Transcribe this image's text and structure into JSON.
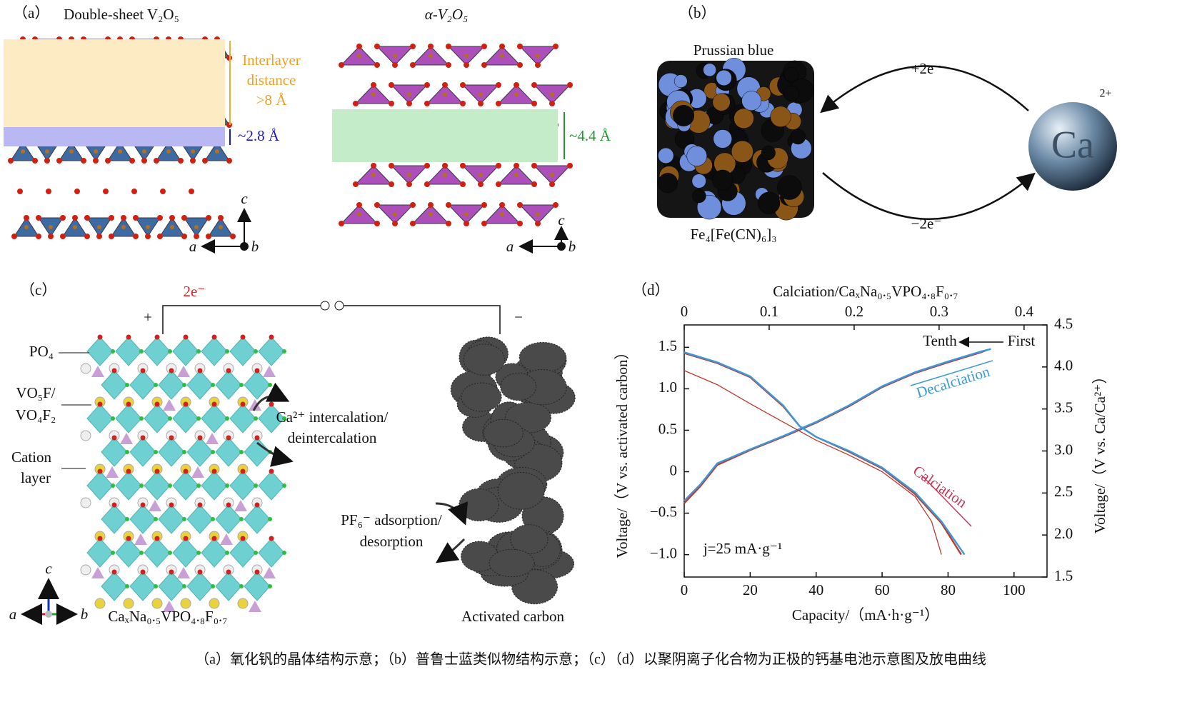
{
  "panel_a": {
    "label": "（a）",
    "left_title": "Double-sheet V₂O₅",
    "right_title": "α-V₂O₅",
    "interlayer": [
      "Interlayer",
      "distance",
      ">8 Å"
    ],
    "gap_left": "~2.8 Å",
    "gap_right": "~4.4 Å",
    "axes_left": [
      "c",
      "a",
      "b"
    ],
    "axes_right": [
      "c",
      "a",
      "b"
    ]
  },
  "panel_b": {
    "label": "（b）",
    "compound": "Prussian blue",
    "formula": "Fe₄[Fe(CN)₆]₃",
    "charge_top": "+2e⁻",
    "charge_bottom": "−2e⁻",
    "ion": "Ca",
    "ion_charge": "2+"
  },
  "panel_c": {
    "label": "（c）",
    "electrons": "2e⁻",
    "plus": "+",
    "minus": "−",
    "labels": [
      "PO₄",
      "VO₅F/",
      "VO₄F₂",
      "Cation",
      "layer"
    ],
    "cation_process": [
      "Ca²⁺ intercalation/",
      "deintercalation"
    ],
    "anion_process": [
      "PF₆⁻ adsorption/",
      "desorption"
    ],
    "cathode": "CaₓNa₀.₅VPO₄.₈F₀.₇",
    "anode": "Activated carbon",
    "axes": [
      "c",
      "a",
      "b"
    ]
  },
  "chart_data": {
    "type": "line",
    "label": "（d）",
    "x_label": "Capacity/（mA·h·g⁻¹）",
    "x2_label": "Calciation/CaₓNa₀.₅VPO₄.₈F₀.₇",
    "y_label": "Voltage/（V vs. activated carbon）",
    "y2_label": "Voltage/（V vs. Ca/Ca²⁺）",
    "xlim": [
      0,
      110
    ],
    "xticks": [
      0,
      20,
      40,
      60,
      80,
      100
    ],
    "x2lim": [
      0,
      0.427
    ],
    "x2ticks": [
      0,
      0.1,
      0.2,
      0.3,
      0.4
    ],
    "ylim": [
      -1.27,
      1.77
    ],
    "yticks": [
      {
        "value": -1,
        "label": "−1.0"
      },
      {
        "value": -0.5,
        "label": "−0.5"
      },
      0,
      0.5,
      {
        "value": 1,
        "label": "1.0"
      },
      1.5
    ],
    "y2lim": [
      1.5,
      4.5
    ],
    "y2ticks": [
      1.5,
      {
        "value": 2,
        "label": "2.0"
      },
      2.5,
      {
        "value": 3,
        "label": "3.0"
      },
      3.5,
      {
        "value": 4,
        "label": "4.0"
      },
      4.5
    ],
    "series": [
      {
        "color": "#c0392b",
        "x": [
          0,
          5,
          10,
          20,
          30,
          40,
          50,
          60,
          70,
          80,
          90,
          92
        ],
        "values": [
          -0.38,
          -0.17,
          0.08,
          0.26,
          0.42,
          0.59,
          0.79,
          1.02,
          1.19,
          1.32,
          1.44,
          1.47
        ]
      },
      {
        "color": "#3a9ad9",
        "x": [
          0,
          5,
          10,
          20,
          30,
          40,
          50,
          60,
          70,
          80,
          90,
          93
        ],
        "values": [
          -0.35,
          -0.15,
          0.1,
          0.27,
          0.43,
          0.6,
          0.8,
          1.03,
          1.2,
          1.33,
          1.45,
          1.48
        ]
      },
      {
        "color": "#c0392b",
        "x": [
          0,
          10,
          20,
          30,
          40,
          50,
          60,
          70,
          75,
          78
        ],
        "values": [
          1.22,
          1.05,
          0.82,
          0.6,
          0.38,
          0.2,
          0,
          -0.3,
          -0.6,
          -1
        ]
      },
      {
        "color": "#c0392b",
        "x": [
          0,
          10,
          20,
          30,
          35,
          40,
          50,
          60,
          70,
          78,
          84
        ],
        "values": [
          1.43,
          1.31,
          1.14,
          0.79,
          0.55,
          0.42,
          0.24,
          0.04,
          -0.27,
          -0.62,
          -1
        ]
      },
      {
        "color": "#3a9ad9",
        "x": [
          0,
          10,
          20,
          30,
          35,
          40,
          50,
          60,
          70,
          78,
          85
        ],
        "values": [
          1.44,
          1.32,
          1.15,
          0.8,
          0.55,
          0.42,
          0.25,
          0.05,
          -0.25,
          -0.6,
          -1
        ]
      }
    ],
    "annotations": {
      "tenth": "Tenth",
      "first": "First",
      "decalciation": "Decalciation",
      "calciation": "Calciation",
      "current": "j=25 mA·g⁻¹"
    }
  },
  "caption": "（a）氧化钒的晶体结构示意；（b）普鲁士蓝类似物结构示意；（c）（d）以聚阴离子化合物为正极的钙基电池示意图及放电曲线"
}
